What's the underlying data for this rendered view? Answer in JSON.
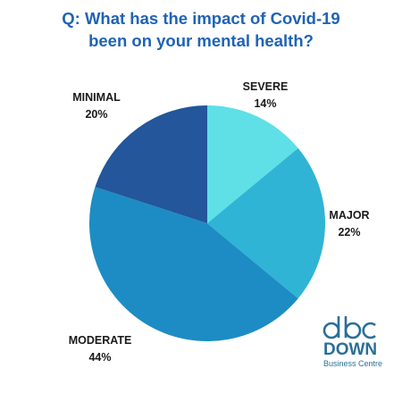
{
  "chart_data": {
    "type": "pie",
    "title_lines": [
      "Q: What has the impact of Covid-19",
      "been on your mental health?"
    ],
    "slices": [
      {
        "label": "SEVERE",
        "value": 14,
        "value_label": "14%",
        "color": "#5ee0e6"
      },
      {
        "label": "MAJOR",
        "value": 22,
        "value_label": "22%",
        "color": "#2fb4d6"
      },
      {
        "label": "MODERATE",
        "value": 44,
        "value_label": "44%",
        "color": "#1d8cc4"
      },
      {
        "label": "MINIMAL",
        "value": 20,
        "value_label": "20%",
        "color": "#23569a"
      }
    ],
    "start_angle_deg": 0,
    "direction": "clockwise"
  },
  "logo": {
    "letters": "dbc",
    "name": "DOWN",
    "subtitle": "Business Centre",
    "color": "#2a6f97"
  }
}
